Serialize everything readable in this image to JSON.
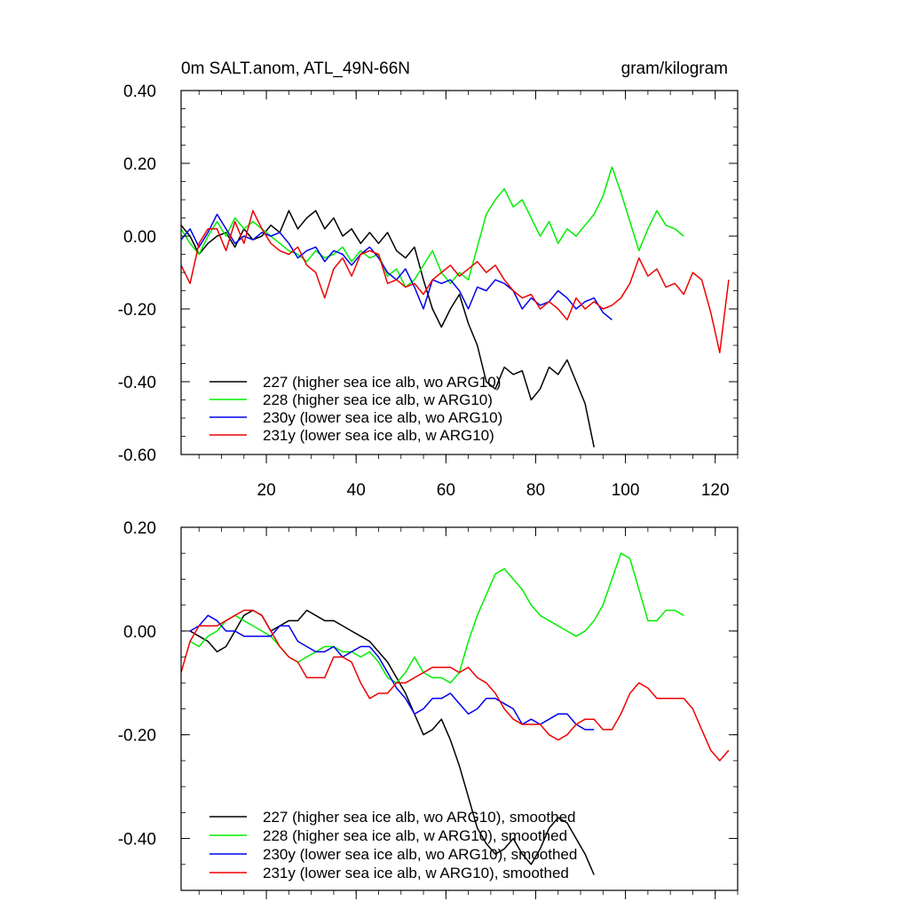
{
  "figure": {
    "title_left": "0m SALT.anom, ATL_49N-66N",
    "title_right": "gram/kilogram"
  },
  "chart_data": [
    {
      "type": "line",
      "panel": "top",
      "xlim": [
        1,
        125
      ],
      "ylim": [
        -0.6,
        0.4
      ],
      "yticks": [
        -0.6,
        -0.4,
        -0.2,
        0.0,
        0.2,
        0.4
      ],
      "ytick_labels": [
        "-0.60",
        "-0.40",
        "-0.20",
        "0.00",
        "0.20",
        "0.40"
      ],
      "xticks": [
        20,
        40,
        60,
        80,
        100,
        120
      ],
      "xtick_labels": [
        "20",
        "40",
        "60",
        "80",
        "100",
        "120"
      ],
      "legend_position": "bottom-left",
      "series": [
        {
          "name": "227 (higher sea ice alb, wo ARG10)",
          "color": "#000000",
          "x": [
            1,
            3,
            5,
            7,
            9,
            11,
            13,
            15,
            17,
            19,
            21,
            23,
            25,
            27,
            29,
            31,
            33,
            35,
            37,
            39,
            41,
            43,
            45,
            47,
            49,
            51,
            53,
            55,
            57,
            59,
            61,
            63,
            65,
            67,
            69,
            71,
            73,
            75,
            77,
            79,
            81,
            83,
            85,
            87,
            89,
            91,
            93
          ],
          "y": [
            0.03,
            0.0,
            -0.05,
            -0.02,
            0.0,
            0.01,
            -0.03,
            0.02,
            -0.01,
            0.0,
            0.03,
            0.01,
            0.07,
            0.02,
            0.05,
            0.07,
            0.02,
            0.05,
            0.0,
            0.02,
            -0.02,
            0.01,
            -0.02,
            0.01,
            -0.04,
            -0.06,
            -0.03,
            -0.12,
            -0.2,
            -0.25,
            -0.2,
            -0.16,
            -0.24,
            -0.3,
            -0.4,
            -0.42,
            -0.36,
            -0.38,
            -0.37,
            -0.45,
            -0.42,
            -0.36,
            -0.38,
            -0.34,
            -0.4,
            -0.46,
            -0.58
          ]
        },
        {
          "name": "228 (higher sea ice alb, w ARG10)",
          "color": "#00ee00",
          "x": [
            1,
            3,
            5,
            7,
            9,
            11,
            13,
            15,
            17,
            19,
            21,
            23,
            25,
            27,
            29,
            31,
            33,
            35,
            37,
            39,
            41,
            43,
            45,
            47,
            49,
            51,
            53,
            55,
            57,
            59,
            61,
            63,
            65,
            67,
            69,
            71,
            73,
            75,
            77,
            79,
            81,
            83,
            85,
            87,
            89,
            91,
            93,
            95,
            97,
            99,
            101,
            103,
            105,
            107,
            109,
            111,
            113
          ],
          "y": [
            0.02,
            -0.02,
            -0.05,
            0.0,
            0.04,
            0.0,
            0.05,
            0.02,
            0.04,
            0.02,
            0.0,
            -0.02,
            -0.04,
            -0.05,
            -0.07,
            -0.04,
            -0.06,
            -0.05,
            -0.03,
            -0.07,
            -0.04,
            -0.06,
            -0.05,
            -0.11,
            -0.09,
            -0.14,
            -0.12,
            -0.08,
            -0.04,
            -0.1,
            -0.13,
            -0.1,
            -0.12,
            -0.03,
            0.06,
            0.1,
            0.13,
            0.08,
            0.1,
            0.05,
            0.0,
            0.04,
            -0.02,
            0.02,
            0.0,
            0.03,
            0.06,
            0.11,
            0.19,
            0.12,
            0.04,
            -0.04,
            0.02,
            0.07,
            0.03,
            0.02,
            0.0
          ]
        },
        {
          "name": "230y (lower sea ice alb, wo ARG10)",
          "color": "#0000ee",
          "x": [
            1,
            3,
            5,
            7,
            9,
            11,
            13,
            15,
            17,
            19,
            21,
            23,
            25,
            27,
            29,
            31,
            33,
            35,
            37,
            39,
            41,
            43,
            45,
            47,
            49,
            51,
            53,
            55,
            57,
            59,
            61,
            63,
            65,
            67,
            69,
            71,
            73,
            75,
            77,
            79,
            81,
            83,
            85,
            87,
            89,
            91,
            93,
            95,
            97
          ],
          "y": [
            -0.01,
            0.02,
            -0.03,
            0.01,
            0.06,
            0.02,
            -0.02,
            0.0,
            -0.01,
            0.01,
            0.0,
            0.01,
            -0.02,
            -0.06,
            -0.04,
            -0.03,
            -0.07,
            -0.04,
            -0.05,
            -0.08,
            -0.05,
            -0.03,
            -0.06,
            -0.1,
            -0.12,
            -0.09,
            -0.14,
            -0.2,
            -0.12,
            -0.13,
            -0.12,
            -0.15,
            -0.2,
            -0.14,
            -0.15,
            -0.12,
            -0.13,
            -0.15,
            -0.2,
            -0.17,
            -0.19,
            -0.18,
            -0.15,
            -0.17,
            -0.2,
            -0.18,
            -0.17,
            -0.21,
            -0.23
          ]
        },
        {
          "name": "231y (lower sea ice alb, w ARG10)",
          "color": "#ee0000",
          "x": [
            1,
            3,
            5,
            7,
            9,
            11,
            13,
            15,
            17,
            19,
            21,
            23,
            25,
            27,
            29,
            31,
            33,
            35,
            37,
            39,
            41,
            43,
            45,
            47,
            49,
            51,
            53,
            55,
            57,
            59,
            61,
            63,
            65,
            67,
            69,
            71,
            73,
            75,
            77,
            79,
            81,
            83,
            85,
            87,
            89,
            91,
            93,
            95,
            97,
            99,
            101,
            103,
            105,
            107,
            109,
            111,
            113,
            115,
            117,
            119,
            121,
            123
          ],
          "y": [
            -0.08,
            -0.13,
            -0.02,
            0.02,
            0.02,
            -0.04,
            0.04,
            -0.02,
            0.07,
            0.02,
            -0.02,
            -0.04,
            -0.05,
            -0.03,
            -0.08,
            -0.1,
            -0.17,
            -0.09,
            -0.06,
            -0.11,
            -0.05,
            -0.04,
            -0.05,
            -0.13,
            -0.12,
            -0.14,
            -0.13,
            -0.16,
            -0.12,
            -0.1,
            -0.08,
            -0.11,
            -0.09,
            -0.07,
            -0.1,
            -0.08,
            -0.12,
            -0.15,
            -0.17,
            -0.16,
            -0.2,
            -0.18,
            -0.2,
            -0.23,
            -0.17,
            -0.2,
            -0.18,
            -0.2,
            -0.19,
            -0.17,
            -0.13,
            -0.06,
            -0.11,
            -0.09,
            -0.14,
            -0.13,
            -0.16,
            -0.1,
            -0.12,
            -0.21,
            -0.32,
            -0.12
          ]
        }
      ]
    },
    {
      "type": "line",
      "panel": "bottom",
      "xlim": [
        1,
        125
      ],
      "ylim": [
        -0.5,
        0.2
      ],
      "yticks": [
        -0.4,
        -0.2,
        0.0,
        0.2
      ],
      "ytick_labels": [
        "-0.40",
        "-0.20",
        "0.00",
        "0.20"
      ],
      "legend_position": "bottom-left",
      "series": [
        {
          "name": "227 (higher sea ice alb, wo ARG10), smoothed",
          "color": "#000000",
          "x": [
            3,
            5,
            7,
            9,
            11,
            13,
            15,
            17,
            19,
            21,
            23,
            25,
            27,
            29,
            31,
            33,
            35,
            37,
            39,
            41,
            43,
            45,
            47,
            49,
            51,
            53,
            55,
            57,
            59,
            61,
            63,
            65,
            67,
            69,
            71,
            73,
            75,
            77,
            79,
            81,
            83,
            85,
            87,
            89,
            91,
            93
          ],
          "y": [
            0.0,
            -0.01,
            -0.02,
            -0.04,
            -0.03,
            0.0,
            0.03,
            0.04,
            0.03,
            0.0,
            0.01,
            0.02,
            0.02,
            0.04,
            0.03,
            0.02,
            0.02,
            0.01,
            0.0,
            -0.01,
            -0.02,
            -0.04,
            -0.06,
            -0.09,
            -0.12,
            -0.16,
            -0.2,
            -0.19,
            -0.17,
            -0.21,
            -0.26,
            -0.32,
            -0.38,
            -0.41,
            -0.43,
            -0.42,
            -0.4,
            -0.43,
            -0.45,
            -0.42,
            -0.38,
            -0.36,
            -0.37,
            -0.4,
            -0.43,
            -0.47
          ]
        },
        {
          "name": "228 (higher sea ice alb, w ARG10), smoothed",
          "color": "#00ee00",
          "x": [
            3,
            5,
            7,
            9,
            11,
            13,
            15,
            17,
            19,
            21,
            23,
            25,
            27,
            29,
            31,
            33,
            35,
            37,
            39,
            41,
            43,
            45,
            47,
            49,
            51,
            53,
            55,
            57,
            59,
            61,
            63,
            65,
            67,
            69,
            71,
            73,
            75,
            77,
            79,
            81,
            83,
            85,
            87,
            89,
            91,
            93,
            95,
            97,
            99,
            101,
            103,
            105,
            107,
            109,
            111,
            113
          ],
          "y": [
            -0.02,
            -0.03,
            -0.01,
            0.0,
            0.02,
            0.03,
            0.02,
            0.01,
            0.0,
            -0.01,
            -0.03,
            -0.05,
            -0.06,
            -0.05,
            -0.04,
            -0.03,
            -0.03,
            -0.04,
            -0.04,
            -0.05,
            -0.04,
            -0.06,
            -0.09,
            -0.1,
            -0.08,
            -0.05,
            -0.08,
            -0.09,
            -0.09,
            -0.1,
            -0.08,
            -0.02,
            0.03,
            0.07,
            0.11,
            0.12,
            0.1,
            0.08,
            0.05,
            0.03,
            0.02,
            0.01,
            0.0,
            -0.01,
            0.0,
            0.02,
            0.05,
            0.1,
            0.15,
            0.14,
            0.08,
            0.02,
            0.02,
            0.04,
            0.04,
            0.03
          ]
        },
        {
          "name": "230y (lower sea ice alb, wo ARG10), smoothed",
          "color": "#0000ee",
          "x": [
            3,
            5,
            7,
            9,
            11,
            13,
            15,
            17,
            19,
            21,
            23,
            25,
            27,
            29,
            31,
            33,
            35,
            37,
            39,
            41,
            43,
            45,
            47,
            49,
            51,
            53,
            55,
            57,
            59,
            61,
            63,
            65,
            67,
            69,
            71,
            73,
            75,
            77,
            79,
            81,
            83,
            85,
            87,
            89,
            91,
            93
          ],
          "y": [
            0.0,
            0.01,
            0.03,
            0.02,
            0.0,
            0.0,
            -0.01,
            -0.01,
            -0.01,
            -0.01,
            0.01,
            0.01,
            -0.02,
            -0.03,
            -0.04,
            -0.04,
            -0.03,
            -0.05,
            -0.04,
            -0.03,
            -0.03,
            -0.05,
            -0.08,
            -0.11,
            -0.13,
            -0.16,
            -0.15,
            -0.13,
            -0.13,
            -0.12,
            -0.14,
            -0.16,
            -0.15,
            -0.13,
            -0.13,
            -0.14,
            -0.15,
            -0.18,
            -0.17,
            -0.18,
            -0.17,
            -0.16,
            -0.16,
            -0.18,
            -0.19,
            -0.19
          ]
        },
        {
          "name": "231y (lower sea ice alb, w ARG10), smoothed",
          "color": "#ee0000",
          "x": [
            1,
            3,
            5,
            7,
            9,
            11,
            13,
            15,
            17,
            19,
            21,
            23,
            25,
            27,
            29,
            31,
            33,
            35,
            37,
            39,
            41,
            43,
            45,
            47,
            49,
            51,
            53,
            55,
            57,
            59,
            61,
            63,
            65,
            67,
            69,
            71,
            73,
            75,
            77,
            79,
            81,
            83,
            85,
            87,
            89,
            91,
            93,
            95,
            97,
            99,
            101,
            103,
            105,
            107,
            109,
            111,
            113,
            115,
            117,
            119,
            121,
            123
          ],
          "y": [
            -0.08,
            -0.02,
            0.01,
            0.01,
            0.01,
            0.02,
            0.03,
            0.04,
            0.04,
            0.03,
            0.0,
            -0.03,
            -0.05,
            -0.06,
            -0.09,
            -0.09,
            -0.09,
            -0.05,
            -0.05,
            -0.06,
            -0.1,
            -0.13,
            -0.12,
            -0.12,
            -0.1,
            -0.1,
            -0.09,
            -0.08,
            -0.07,
            -0.07,
            -0.07,
            -0.08,
            -0.07,
            -0.09,
            -0.1,
            -0.12,
            -0.15,
            -0.17,
            -0.18,
            -0.18,
            -0.18,
            -0.2,
            -0.21,
            -0.2,
            -0.18,
            -0.17,
            -0.17,
            -0.19,
            -0.19,
            -0.16,
            -0.12,
            -0.1,
            -0.11,
            -0.13,
            -0.13,
            -0.13,
            -0.13,
            -0.15,
            -0.19,
            -0.23,
            -0.25,
            -0.23
          ]
        }
      ]
    }
  ]
}
